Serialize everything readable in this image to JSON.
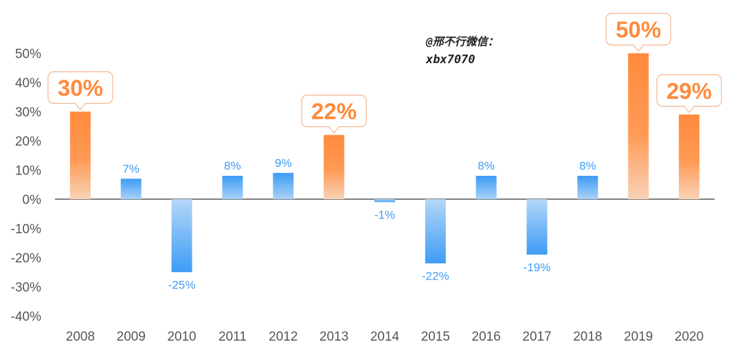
{
  "chart_data": {
    "type": "bar",
    "categories": [
      "2008",
      "2009",
      "2010",
      "2011",
      "2012",
      "2013",
      "2014",
      "2015",
      "2016",
      "2017",
      "2018",
      "2019",
      "2020"
    ],
    "values": [
      30,
      7,
      -25,
      8,
      9,
      22,
      -1,
      -22,
      8,
      -19,
      8,
      50,
      29
    ],
    "data_labels": [
      "30%",
      "7%",
      "-25%",
      "8%",
      "9%",
      "22%",
      "-1%",
      "-22%",
      "8%",
      "-19%",
      "8%",
      "50%",
      "29%"
    ],
    "highlighted": [
      true,
      false,
      false,
      false,
      false,
      true,
      false,
      false,
      false,
      false,
      false,
      true,
      true
    ],
    "y_ticks": [
      "50%",
      "40%",
      "30%",
      "20%",
      "10%",
      "0%",
      "-10%",
      "-20%",
      "-30%",
      "-40%"
    ],
    "ylim": [
      -40,
      50
    ],
    "title": "",
    "xlabel": "",
    "ylabel": "",
    "grid": false,
    "legend": "none",
    "colors": {
      "positive_top": "#ff8a3d",
      "positive_bottom": "#f7c9a8",
      "highlight_label": "#ff8a3d",
      "highlight_box_border": "#f3b58d",
      "negative_top": "#9cc9f5",
      "negative_bottom": "#3d9cf5",
      "normal_label": "#3d9cf5",
      "axis_text": "#555555",
      "zero_line": "#333333"
    }
  },
  "watermark": {
    "line1": "@邢不行微信：",
    "line2": "xbx7070"
  }
}
